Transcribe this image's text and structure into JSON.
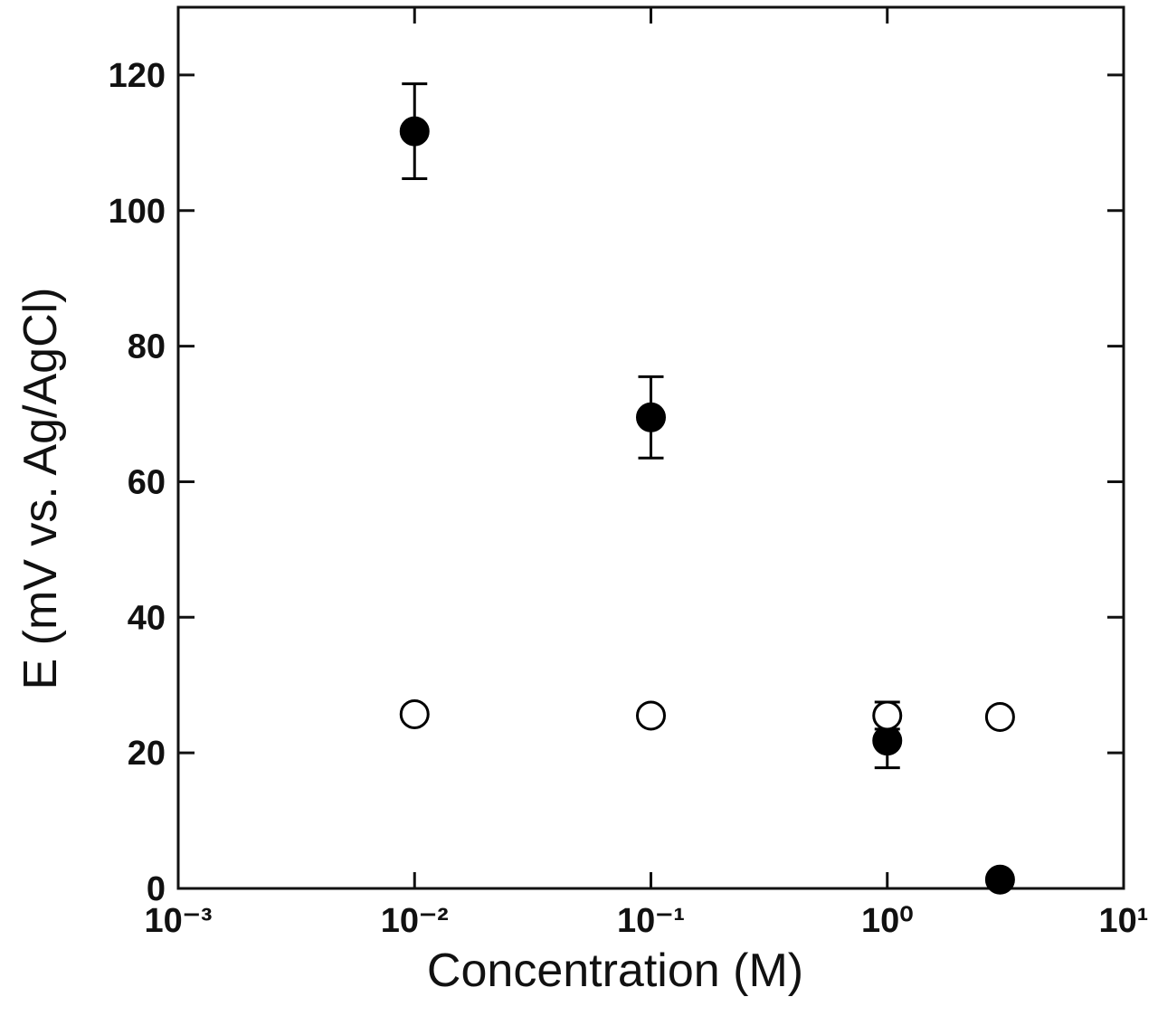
{
  "chart_data": {
    "type": "scatter",
    "x_label": "Concentration (M)",
    "y_label": "E (mV vs. Ag/AgCl)",
    "x_scale": "log",
    "xlim": [
      0.001,
      10
    ],
    "xticks": [
      {
        "value": 0.001,
        "label": "10⁻³"
      },
      {
        "value": 0.01,
        "label": "10⁻²"
      },
      {
        "value": 0.1,
        "label": "10⁻¹"
      },
      {
        "value": 1,
        "label": "10⁰"
      },
      {
        "value": 10,
        "label": "10¹"
      }
    ],
    "ylim": [
      0,
      130
    ],
    "yticks": [
      0,
      20,
      40,
      60,
      80,
      100,
      120
    ],
    "series": [
      {
        "marker": "filled",
        "color": "#000000",
        "x": [
          0.01,
          0.1,
          1,
          3
        ],
        "values": [
          111.7,
          69.5,
          21.8,
          1.3
        ],
        "errors": [
          7,
          6,
          4,
          0
        ]
      },
      {
        "marker": "open",
        "color": "#000000",
        "x": [
          0.01,
          0.1,
          1,
          3
        ],
        "values": [
          25.7,
          25.5,
          25.5,
          25.3
        ],
        "errors": [
          1,
          1,
          2,
          1
        ]
      }
    ]
  }
}
